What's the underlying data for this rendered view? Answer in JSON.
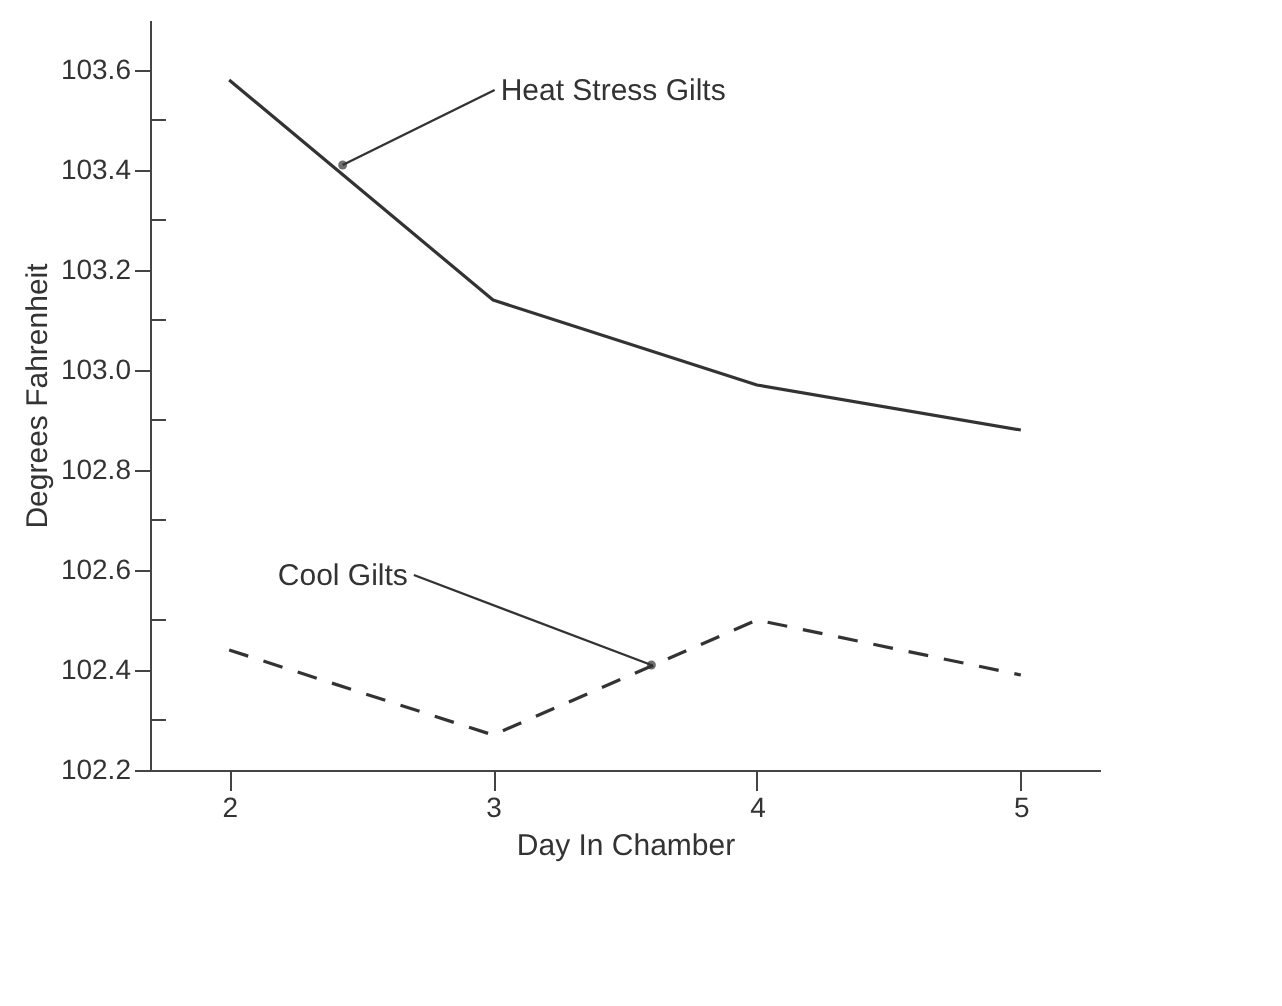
{
  "chart_data": {
    "type": "line",
    "xlabel": "Day In Chamber",
    "ylabel": "Degrees Fahrenheit",
    "x": [
      2,
      3,
      4,
      5
    ],
    "series": [
      {
        "color": "#333333",
        "line_style": "solid",
        "values": [
          103.58,
          103.14,
          102.97,
          102.88
        ]
      },
      {
        "color": "#333333",
        "line_style": "dashed",
        "values": [
          102.44,
          102.27,
          102.5,
          102.39
        ]
      }
    ],
    "xlim": [
      1.7,
      5.3
    ],
    "xticks": [
      2,
      3,
      4,
      5
    ],
    "ylim": [
      102.2,
      103.7
    ],
    "yticks": [
      102.2,
      {
        "value": 102.3,
        "label": null
      },
      102.4,
      {
        "value": 102.5,
        "label": null
      },
      102.6,
      {
        "value": 102.7,
        "label": null
      },
      102.8,
      {
        "value": 102.9,
        "label": null
      },
      {
        "value": 103,
        "label": "103.0"
      },
      {
        "value": 103.1,
        "label": null
      },
      103.2,
      {
        "value": 103.3,
        "label": null
      },
      103.4,
      {
        "value": 103.5,
        "label": null
      },
      103.6
    ],
    "annotations": [
      {
        "text": "Heat Stress Gilts",
        "x": 2.43,
        "y": 103.41
      },
      {
        "text": "Cool Gilts",
        "x": 3.6,
        "y": 102.41
      }
    ],
    "grid": false,
    "marker": "none"
  }
}
